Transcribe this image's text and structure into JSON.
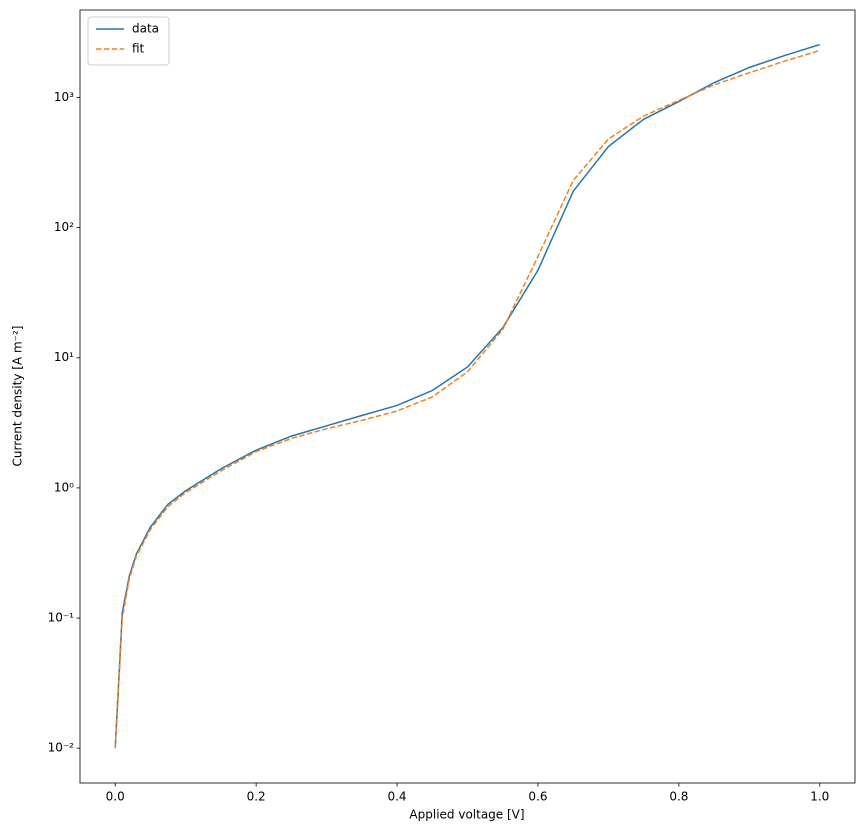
{
  "chart_data": {
    "type": "line",
    "x_label": "Applied voltage [V]",
    "y_label": "Current density [A m⁻²]",
    "x": [
      0,
      0.01,
      0.02,
      0.03,
      0.05,
      0.075,
      0.1,
      0.15,
      0.2,
      0.25,
      0.3,
      0.35,
      0.4,
      0.45,
      0.5,
      0.55,
      0.6,
      0.65,
      0.7,
      0.75,
      0.8,
      0.85,
      0.9,
      0.95,
      1
    ],
    "series": [
      {
        "name": "data",
        "color": "#1f77b4",
        "dash": "solid",
        "values": [
          0.01,
          0.11,
          0.21,
          0.31,
          0.5,
          0.75,
          0.95,
          1.4,
          1.95,
          2.5,
          3.0,
          3.6,
          4.3,
          5.6,
          8.5,
          17,
          47,
          190,
          420,
          680,
          930,
          1300,
          1700,
          2100,
          2550
        ]
      },
      {
        "name": "fit",
        "color": "#ff7f0e",
        "dash": "dashed",
        "values": [
          0.01,
          0.1,
          0.2,
          0.3,
          0.48,
          0.72,
          0.92,
          1.35,
          1.9,
          2.4,
          2.85,
          3.3,
          3.9,
          5.0,
          7.8,
          16.5,
          60,
          230,
          480,
          720,
          950,
          1250,
          1550,
          1900,
          2300
        ]
      }
    ],
    "xlim": [
      -0.05,
      1.05
    ],
    "xticks": [
      {
        "value": 0,
        "label": "0.0"
      },
      0.2,
      0.4,
      0.6,
      0.8,
      {
        "value": 1,
        "label": "1.0"
      }
    ],
    "ylim": [
      0.0054,
      4700
    ],
    "yscale": "log",
    "yticks": [
      {
        "value": 0.01,
        "label": "10⁻²"
      },
      {
        "value": 0.1,
        "label": "10⁻¹"
      },
      {
        "value": 1,
        "label": "10⁰"
      },
      {
        "value": 10,
        "label": "10¹"
      },
      {
        "value": 100,
        "label": "10²"
      },
      {
        "value": 1000,
        "label": "10³"
      }
    ],
    "legend": "upper left"
  }
}
